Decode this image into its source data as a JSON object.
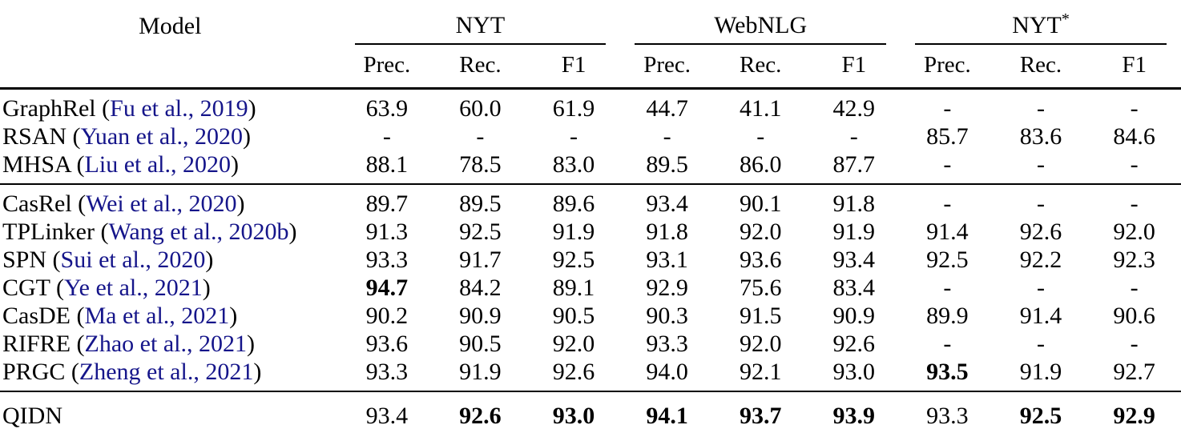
{
  "table": {
    "model_header": "Model",
    "groups": [
      {
        "label": "NYT",
        "sup": ""
      },
      {
        "label": "WebNLG",
        "sup": ""
      },
      {
        "label": "NYT",
        "sup": "*"
      }
    ],
    "subheaders": [
      "Prec.",
      "Rec.",
      "F1"
    ],
    "colors": {
      "citation": "#15158a",
      "rule": "#000000",
      "text": "#000000"
    },
    "sections": [
      {
        "rows": [
          {
            "model": "GraphRel",
            "citation": "Fu et al., 2019",
            "values": [
              "63.9",
              "60.0",
              "61.9",
              "44.7",
              "41.1",
              "42.9",
              "-",
              "-",
              "-"
            ],
            "bold": []
          },
          {
            "model": "RSAN",
            "citation": "Yuan et al., 2020",
            "values": [
              "-",
              "-",
              "-",
              "-",
              "-",
              "-",
              "85.7",
              "83.6",
              "84.6"
            ],
            "bold": []
          },
          {
            "model": "MHSA",
            "citation": "Liu et al., 2020",
            "values": [
              "88.1",
              "78.5",
              "83.0",
              "89.5",
              "86.0",
              "87.7",
              "-",
              "-",
              "-"
            ],
            "bold": []
          }
        ]
      },
      {
        "rows": [
          {
            "model": "CasRel",
            "citation": "Wei et al., 2020",
            "values": [
              "89.7",
              "89.5",
              "89.6",
              "93.4",
              "90.1",
              "91.8",
              "-",
              "-",
              "-"
            ],
            "bold": []
          },
          {
            "model": "TPLinker",
            "citation": "Wang et al., 2020b",
            "values": [
              "91.3",
              "92.5",
              "91.9",
              "91.8",
              "92.0",
              "91.9",
              "91.4",
              "92.6",
              "92.0"
            ],
            "bold": []
          },
          {
            "model": "SPN",
            "citation": "Sui et al., 2020",
            "values": [
              "93.3",
              "91.7",
              "92.5",
              "93.1",
              "93.6",
              "93.4",
              "92.5",
              "92.2",
              "92.3"
            ],
            "bold": []
          },
          {
            "model": "CGT",
            "citation": "Ye et al., 2021",
            "values": [
              "94.7",
              "84.2",
              "89.1",
              "92.9",
              "75.6",
              "83.4",
              "-",
              "-",
              "-"
            ],
            "bold": [
              0
            ]
          },
          {
            "model": "CasDE",
            "citation": "Ma et al., 2021",
            "values": [
              "90.2",
              "90.9",
              "90.5",
              "90.3",
              "91.5",
              "90.9",
              "89.9",
              "91.4",
              "90.6"
            ],
            "bold": []
          },
          {
            "model": "RIFRE",
            "citation": "Zhao et al., 2021",
            "values": [
              "93.6",
              "90.5",
              "92.0",
              "93.3",
              "92.0",
              "92.6",
              "-",
              "-",
              "-"
            ],
            "bold": []
          },
          {
            "model": "PRGC",
            "citation": "Zheng et al., 2021",
            "values": [
              "93.3",
              "91.9",
              "92.6",
              "94.0",
              "92.1",
              "93.0",
              "93.5",
              "91.9",
              "92.7"
            ],
            "bold": [
              6
            ]
          }
        ]
      },
      {
        "rows": [
          {
            "model": "QIDN",
            "citation": null,
            "values": [
              "93.4",
              "92.6",
              "93.0",
              "94.1",
              "93.7",
              "93.9",
              "93.3",
              "92.5",
              "92.9"
            ],
            "bold": [
              1,
              2,
              3,
              4,
              5,
              7,
              8
            ]
          }
        ]
      }
    ]
  }
}
